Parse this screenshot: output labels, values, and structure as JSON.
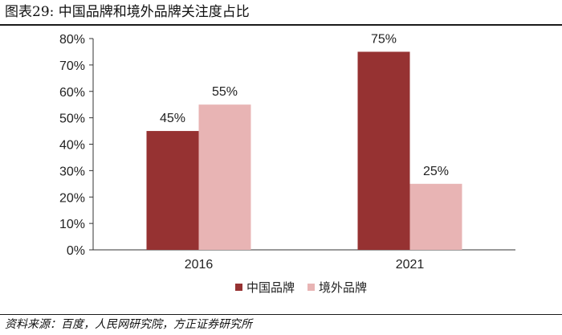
{
  "figure": {
    "title": "图表29: 中国品牌和境外品牌关注度占比",
    "source": "资料来源：百度，人民网研究院，方正证券研究所"
  },
  "chart_data": {
    "type": "bar",
    "title": "",
    "xlabel": "",
    "ylabel": "",
    "categories": [
      "2016",
      "2021"
    ],
    "series": [
      {
        "name": "中国品牌",
        "values": [
          45,
          75
        ],
        "labels": [
          "45%",
          "75%"
        ],
        "color": "#963232"
      },
      {
        "name": "境外品牌",
        "values": [
          55,
          25
        ],
        "labels": [
          "55%",
          "25%"
        ],
        "color": "#e8b4b4"
      }
    ],
    "ylim": [
      0,
      80
    ],
    "yticks": [
      0,
      10,
      20,
      30,
      40,
      50,
      60,
      70,
      80
    ],
    "ytick_labels": [
      "0%",
      "10%",
      "20%",
      "30%",
      "40%",
      "50%",
      "60%",
      "70%",
      "80%"
    ],
    "grid": false,
    "legend_position": "bottom"
  }
}
